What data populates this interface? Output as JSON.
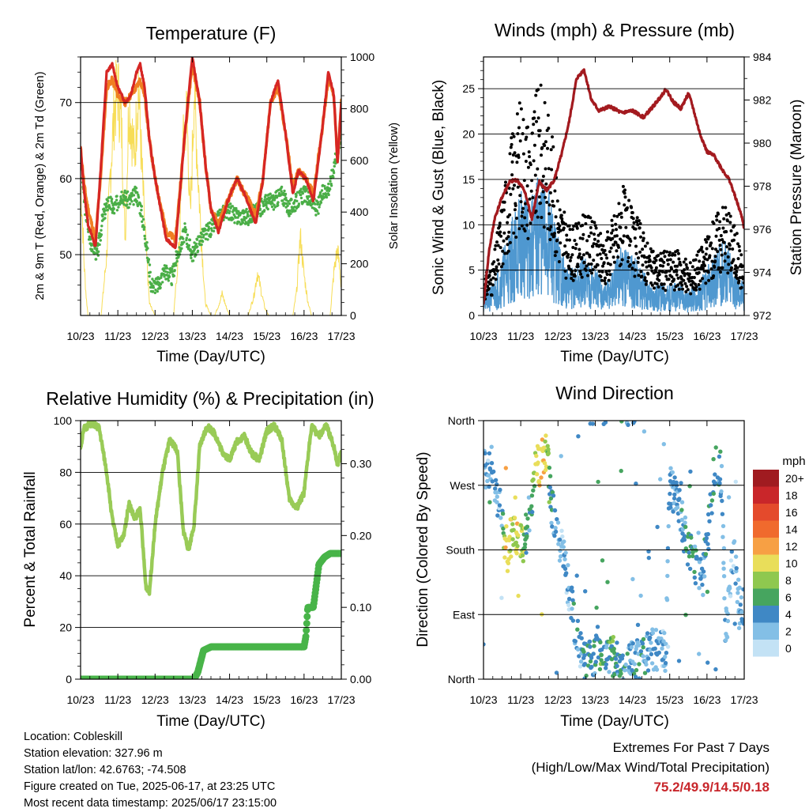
{
  "colors": {
    "temp_2m": "#d62624",
    "temp_9m": "#f07f22",
    "dewpoint": "#4aae47",
    "solar": "#f7dd57",
    "wind": "#4f98d0",
    "gust": "#000000",
    "pressure": "#a31a1f",
    "rh": "#99cb57",
    "precip": "#48b449"
  },
  "panels": {
    "temperature": {
      "title": "Temperature (F)",
      "xlabel": "Time (Day/UTC)",
      "ylabel_left": "2m & 9m T (Red, Orange) & 2m Td (Green)",
      "ylabel_right": "Solar Insolation (Yellow)"
    },
    "wind": {
      "title": "Winds (mph) & Pressure (mb)",
      "xlabel": "Time (Day/UTC)",
      "ylabel_left": "Sonic Wind & Gust (Blue, Black)",
      "ylabel_right": "Station Pressure (Maroon)"
    },
    "rh": {
      "title": "Relative Humidity (%) & Precipitation (in)",
      "xlabel": "Time (Day/UTC)",
      "ylabel_left": "Percent & Total Rainfall"
    },
    "direction": {
      "title": "Wind Direction",
      "xlabel": "Time (Day/UTC)",
      "ylabel_left": "Direction (Colored By Speed)",
      "legend_title": "mph"
    }
  },
  "info": {
    "location": "Location: Cobleskill",
    "elevation": "Station elevation: 327.96 m",
    "latlon": "Station lat/lon: 42.6763; -74.508",
    "created": "Figure created on Tue, 2025-06-17, at 23:25 UTC",
    "recent": "Most recent data timestamp: 2025/06/17 23:15:00"
  },
  "extremes": {
    "title": "Extremes For Past 7 Days",
    "subtitle": "(High/Low/Max Wind/Total Precipitation)",
    "values": "75.2/49.9/14.5/0.18"
  },
  "chart_data": [
    {
      "type": "line",
      "panel": "temperature",
      "x_ticks": [
        "10/23",
        "11/23",
        "12/23",
        "13/23",
        "14/23",
        "15/23",
        "16/23",
        "17/23"
      ],
      "xlim": [
        0,
        7
      ],
      "ylim_left": [
        42,
        76
      ],
      "y_ticks_left": [
        "50",
        "60",
        "70"
      ],
      "ylim_right": [
        0,
        1000
      ],
      "y_ticks_right": [
        "0",
        "200",
        "400",
        "600",
        "800",
        "1000"
      ],
      "grid": "horizontal at left ticks",
      "series": [
        {
          "name": "2m T",
          "axis": "left",
          "x": [
            0,
            0.1,
            0.2,
            0.4,
            0.55,
            0.7,
            0.85,
            1.0,
            1.2,
            1.35,
            1.5,
            1.6,
            1.72,
            1.85,
            2.0,
            2.3,
            2.55,
            2.8,
            3.0,
            3.2,
            3.35,
            3.5,
            3.7,
            3.95,
            4.2,
            4.4,
            4.55,
            4.7,
            4.9,
            5.1,
            5.3,
            5.5,
            5.7,
            5.85,
            6.05,
            6.25,
            6.5,
            6.65,
            6.8,
            6.9,
            7.0
          ],
          "values": [
            64,
            58,
            54,
            51,
            62,
            74,
            75,
            72,
            70,
            71,
            74,
            75,
            72,
            65,
            60,
            52,
            51,
            66,
            76,
            70,
            62,
            56,
            53,
            57,
            60,
            58,
            56,
            54,
            60,
            70,
            73,
            66,
            58,
            61,
            60,
            57,
            67,
            74,
            71,
            62,
            70
          ]
        },
        {
          "name": "9m T",
          "axis": "left",
          "x": [
            0,
            0.1,
            0.2,
            0.4,
            0.55,
            0.7,
            0.85,
            1.0,
            1.2,
            1.35,
            1.5,
            1.6,
            1.72,
            1.85,
            2.0,
            2.3,
            2.55,
            2.8,
            3.0,
            3.2,
            3.35,
            3.5,
            3.7,
            3.95,
            4.2,
            4.4,
            4.55,
            4.7,
            4.9,
            5.1,
            5.3,
            5.5,
            5.7,
            5.85,
            6.05,
            6.25,
            6.5,
            6.65,
            6.8,
            6.9,
            7.0
          ],
          "values": [
            64,
            59,
            56,
            52,
            61,
            72,
            73,
            71,
            70,
            71,
            72,
            73,
            71,
            65,
            60,
            53,
            52,
            66,
            75,
            70,
            62,
            56,
            54,
            57,
            60,
            58,
            57,
            55,
            60,
            70,
            72,
            66,
            59,
            61,
            60,
            58,
            67,
            73,
            71,
            62,
            70
          ]
        },
        {
          "name": "2m Td",
          "axis": "left",
          "x": [
            0,
            0.1,
            0.25,
            0.45,
            0.6,
            0.75,
            0.9,
            1.1,
            1.3,
            1.5,
            1.62,
            1.75,
            1.9,
            2.1,
            2.25,
            2.45,
            2.6,
            2.8,
            3.0,
            3.2,
            3.4,
            3.6,
            3.9,
            4.2,
            4.5,
            4.8,
            5.0,
            5.2,
            5.4,
            5.6,
            5.8,
            6.0,
            6.2,
            6.35,
            6.5,
            6.7,
            6.85,
            7.0
          ],
          "values": [
            63,
            57,
            52,
            50,
            55,
            57,
            56,
            58,
            57,
            58,
            56,
            52,
            46,
            46,
            48,
            47,
            50,
            53,
            50,
            52,
            53,
            54,
            56,
            55,
            55,
            56,
            57,
            57,
            58,
            56,
            57,
            58,
            57,
            56,
            58,
            59,
            63,
            66
          ]
        },
        {
          "name": "Solar",
          "axis": "right",
          "x": [
            0,
            0.05,
            0.1,
            0.15,
            0.2,
            0.3,
            0.55,
            0.7,
            0.8,
            0.9,
            1.0,
            1.1,
            1.2,
            1.3,
            1.45,
            1.55,
            1.65,
            1.75,
            1.85,
            2.0,
            2.2,
            2.5,
            2.65,
            2.75,
            2.85,
            2.95,
            3.05,
            3.15,
            3.25,
            3.35,
            3.5,
            3.6,
            3.7,
            3.8,
            3.9,
            4.0,
            4.2,
            4.5,
            4.65,
            4.75,
            4.85,
            4.95,
            5.05,
            5.15,
            5.25,
            5.45,
            5.7,
            5.8,
            5.9,
            6.0,
            6.1,
            6.2,
            6.45,
            6.7,
            6.8,
            6.9,
            7.0
          ],
          "values": [
            550,
            400,
            200,
            80,
            0,
            0,
            0,
            250,
            600,
            850,
            950,
            780,
            320,
            900,
            650,
            980,
            600,
            300,
            50,
            0,
            0,
            0,
            300,
            700,
            850,
            400,
            950,
            600,
            300,
            50,
            0,
            0,
            40,
            90,
            40,
            0,
            0,
            0,
            80,
            180,
            100,
            30,
            0,
            0,
            0,
            0,
            0,
            100,
            330,
            170,
            60,
            0,
            0,
            0,
            180,
            280,
            120
          ]
        }
      ]
    },
    {
      "type": "line",
      "panel": "wind",
      "x_ticks": [
        "10/23",
        "11/23",
        "12/23",
        "13/23",
        "14/23",
        "15/23",
        "16/23",
        "17/23"
      ],
      "xlim": [
        0,
        7
      ],
      "ylim_left": [
        0,
        28.5
      ],
      "y_ticks_left": [
        "0",
        "5",
        "10",
        "15",
        "20",
        "25"
      ],
      "ylim_right": [
        972,
        984
      ],
      "y_ticks_right": [
        "972",
        "974",
        "976",
        "978",
        "980",
        "982",
        "984"
      ],
      "grid": "horizontal at left ticks",
      "series": [
        {
          "name": "Wind",
          "axis": "left",
          "x": [
            0,
            0.25,
            0.5,
            0.75,
            1.0,
            1.25,
            1.5,
            1.75,
            2.0,
            2.25,
            2.5,
            2.75,
            3.0,
            3.25,
            3.5,
            3.75,
            4.0,
            4.25,
            4.5,
            4.75,
            5.0,
            5.25,
            5.5,
            5.75,
            6.0,
            6.25,
            6.5,
            6.75,
            7.0
          ],
          "values": [
            1.5,
            2,
            4,
            6,
            8,
            7,
            9,
            8,
            5,
            3,
            3,
            4,
            3,
            2,
            3,
            5,
            4,
            3,
            2,
            2,
            2,
            2,
            1.5,
            2,
            3,
            4,
            5,
            3,
            2
          ]
        },
        {
          "name": "Gust",
          "axis": "left",
          "x": [
            0,
            0.25,
            0.5,
            0.75,
            1.0,
            1.25,
            1.5,
            1.75,
            2.0,
            2.25,
            2.5,
            2.75,
            3.0,
            3.25,
            3.5,
            3.75,
            4.0,
            4.25,
            4.5,
            4.75,
            5.0,
            5.25,
            5.5,
            5.75,
            6.0,
            6.25,
            6.5,
            6.75,
            7.0
          ],
          "values": [
            3,
            4,
            9,
            14,
            17,
            15,
            18,
            16,
            10,
            7,
            7,
            8,
            7,
            6,
            8,
            10,
            8,
            7,
            5,
            5,
            5,
            5,
            4,
            5,
            6,
            8,
            9,
            7,
            4
          ]
        },
        {
          "name": "Pressure",
          "axis": "right",
          "x": [
            0,
            0.15,
            0.3,
            0.5,
            0.7,
            0.9,
            1.1,
            1.3,
            1.5,
            1.7,
            1.9,
            2.1,
            2.3,
            2.5,
            2.7,
            2.9,
            3.1,
            3.4,
            3.7,
            4.0,
            4.3,
            4.6,
            4.9,
            5.1,
            5.3,
            5.5,
            5.6,
            5.8,
            6.0,
            6.2,
            6.4,
            6.6,
            6.8,
            6.95,
            7.0
          ],
          "values": [
            972.5,
            975,
            976.5,
            977.5,
            978.2,
            978.3,
            977.8,
            976.5,
            978.2,
            977.8,
            978.3,
            979.5,
            981,
            983,
            983.4,
            982,
            981.5,
            981.7,
            981.4,
            981.5,
            981.2,
            981.8,
            982.5,
            981.9,
            981.6,
            982.3,
            981.8,
            980.5,
            979.6,
            979.4,
            978.8,
            978.3,
            977.3,
            976.5,
            976
          ]
        }
      ]
    },
    {
      "type": "line",
      "panel": "rh",
      "x_ticks": [
        "10/23",
        "11/23",
        "12/23",
        "13/23",
        "14/23",
        "15/23",
        "16/23",
        "17/23"
      ],
      "xlim": [
        0,
        7
      ],
      "ylim_left": [
        0,
        100
      ],
      "y_ticks_left": [
        "0",
        "20",
        "40",
        "60",
        "80",
        "100"
      ],
      "ylim_right": [
        0,
        0.36
      ],
      "y_ticks_right": [
        "0.00",
        "0.10",
        "0.20",
        "0.30"
      ],
      "grid": "horizontal at left ticks",
      "series": [
        {
          "name": "RH",
          "axis": "left",
          "x": [
            0,
            0.1,
            0.3,
            0.5,
            0.7,
            0.85,
            1.0,
            1.15,
            1.3,
            1.45,
            1.6,
            1.75,
            1.85,
            2.0,
            2.2,
            2.4,
            2.6,
            2.75,
            2.9,
            3.05,
            3.2,
            3.4,
            3.6,
            3.8,
            4.0,
            4.2,
            4.4,
            4.6,
            4.8,
            5.0,
            5.2,
            5.4,
            5.6,
            5.8,
            6.0,
            6.2,
            6.4,
            6.6,
            6.8,
            6.9,
            7.0
          ],
          "values": [
            90,
            97,
            99,
            97,
            80,
            62,
            52,
            55,
            68,
            62,
            66,
            36,
            34,
            60,
            80,
            93,
            88,
            58,
            50,
            60,
            90,
            98,
            95,
            88,
            85,
            92,
            94,
            87,
            85,
            96,
            98,
            93,
            70,
            66,
            72,
            98,
            94,
            98,
            90,
            83,
            88
          ]
        },
        {
          "name": "Precipitation",
          "axis": "right",
          "x": [
            0,
            3.05,
            3.15,
            3.3,
            3.5,
            3.65,
            6.0,
            6.05,
            6.1,
            6.25,
            6.4,
            6.55,
            6.7,
            7.0
          ],
          "values": [
            0,
            0,
            0.01,
            0.04,
            0.045,
            0.045,
            0.045,
            0.06,
            0.1,
            0.1,
            0.16,
            0.17,
            0.175,
            0.175
          ]
        }
      ]
    },
    {
      "type": "scatter",
      "panel": "direction",
      "x_ticks": [
        "10/23",
        "11/23",
        "12/23",
        "13/23",
        "14/23",
        "15/23",
        "16/23",
        "17/23"
      ],
      "xlim": [
        0,
        7
      ],
      "y_ticks_left": [
        "North",
        "East",
        "South",
        "West",
        "North"
      ],
      "ylim_left": [
        0,
        360
      ],
      "grid": "horizontal at left ticks",
      "legend": {
        "title": "mph",
        "labels": [
          "20+",
          "18",
          "16",
          "14",
          "12",
          "10",
          "8",
          "6",
          "4",
          "2",
          "0"
        ],
        "colors": [
          "#a01b20",
          "#c9262a",
          "#e44a2c",
          "#f06a2d",
          "#f7a044",
          "#e9de5a",
          "#8fc84f",
          "#46a55f",
          "#3f88c5",
          "#83bfe6",
          "#c3e2f5"
        ]
      },
      "series": [
        {
          "name": "Direction",
          "x": [
            0.05,
            0.1,
            0.2,
            0.3,
            0.4,
            0.5,
            0.55,
            0.6,
            0.65,
            0.7,
            0.8,
            0.9,
            1.0,
            1.1,
            1.2,
            1.3,
            1.4,
            1.5,
            1.6,
            1.7,
            1.8,
            1.9,
            2.0,
            2.1,
            2.2,
            2.3,
            2.4,
            2.5,
            2.6,
            2.7,
            2.8,
            2.9,
            3.0,
            3.1,
            3.2,
            3.3,
            3.4,
            3.5,
            3.6,
            3.7,
            3.8,
            3.9,
            4.0,
            4.2,
            4.5,
            4.7,
            4.9,
            5.0,
            5.2,
            5.4,
            5.6,
            5.8,
            6.0,
            6.2,
            6.4,
            6.5,
            6.7,
            6.9
          ],
          "values": [
            290,
            280,
            300,
            270,
            250,
            230,
            200,
            190,
            180,
            195,
            200,
            190,
            185,
            190,
            220,
            240,
            300,
            290,
            310,
            320,
            250,
            230,
            200,
            180,
            150,
            120,
            90,
            60,
            40,
            30,
            25,
            20,
            35,
            30,
            25,
            25,
            30,
            30,
            35,
            28,
            30,
            20,
            25,
            30,
            45,
            40,
            40,
            270,
            250,
            200,
            170,
            150,
            180,
            300,
            270,
            60,
            180,
            100
          ],
          "speeds": [
            3,
            2,
            4,
            3,
            2,
            2,
            9,
            12,
            10,
            11,
            9,
            10,
            9,
            8,
            4,
            5,
            10,
            11,
            12,
            9,
            5,
            4,
            3,
            2,
            3,
            2,
            3,
            4,
            2,
            5,
            6,
            5,
            4,
            5,
            6,
            4,
            5,
            6,
            4,
            5,
            4,
            3,
            3,
            4,
            3,
            3,
            2,
            3,
            3,
            4,
            5,
            3,
            4,
            5,
            3,
            3,
            2,
            3
          ]
        }
      ]
    }
  ]
}
